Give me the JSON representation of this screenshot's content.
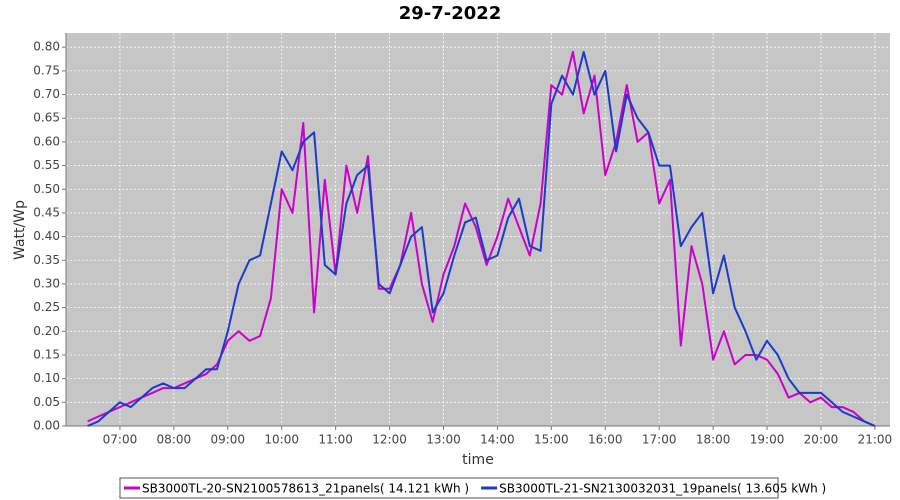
{
  "chart_data": {
    "type": "line",
    "title": "29-7-2022",
    "x_label": "time",
    "y_label": "Watt/Wp",
    "x": [
      6.4,
      6.6,
      6.8,
      7.0,
      7.2,
      7.4,
      7.6,
      7.8,
      8.0,
      8.2,
      8.4,
      8.6,
      8.8,
      9.0,
      9.2,
      9.4,
      9.6,
      9.8,
      10.0,
      10.2,
      10.4,
      10.6,
      10.8,
      11.0,
      11.2,
      11.4,
      11.6,
      11.8,
      12.0,
      12.2,
      12.4,
      12.6,
      12.8,
      13.0,
      13.2,
      13.4,
      13.6,
      13.8,
      14.0,
      14.2,
      14.4,
      14.6,
      14.8,
      15.0,
      15.2,
      15.4,
      15.6,
      15.8,
      16.0,
      16.2,
      16.4,
      16.6,
      16.8,
      17.0,
      17.2,
      17.4,
      17.6,
      17.8,
      18.0,
      18.2,
      18.4,
      18.6,
      18.8,
      19.0,
      19.2,
      19.4,
      19.6,
      19.8,
      20.0,
      20.2,
      20.4,
      20.6,
      20.8,
      21.0
    ],
    "series": [
      {
        "name": "SB3000TL-20-SN2100578613_21panels( 14.121 kWh )",
        "color": "#cc00cc",
        "values": [
          0.01,
          0.02,
          0.03,
          0.04,
          0.05,
          0.06,
          0.07,
          0.08,
          0.08,
          0.09,
          0.1,
          0.11,
          0.13,
          0.18,
          0.2,
          0.18,
          0.19,
          0.27,
          0.5,
          0.45,
          0.64,
          0.24,
          0.52,
          0.32,
          0.55,
          0.45,
          0.57,
          0.29,
          0.29,
          0.34,
          0.45,
          0.3,
          0.22,
          0.32,
          0.38,
          0.47,
          0.42,
          0.34,
          0.4,
          0.48,
          0.42,
          0.36,
          0.47,
          0.72,
          0.7,
          0.79,
          0.66,
          0.74,
          0.53,
          0.6,
          0.72,
          0.6,
          0.62,
          0.47,
          0.52,
          0.17,
          0.38,
          0.3,
          0.14,
          0.2,
          0.13,
          0.15,
          0.15,
          0.14,
          0.11,
          0.06,
          0.07,
          0.05,
          0.06,
          0.04,
          0.04,
          0.03,
          0.01,
          0.0
        ]
      },
      {
        "name": "SB3000TL-21-SN2130032031_19panels( 13.605 kWh )",
        "color": "#1a3cc8",
        "values": [
          0.0,
          0.01,
          0.03,
          0.05,
          0.04,
          0.06,
          0.08,
          0.09,
          0.08,
          0.08,
          0.1,
          0.12,
          0.12,
          0.2,
          0.3,
          0.35,
          0.36,
          0.47,
          0.58,
          0.54,
          0.6,
          0.62,
          0.34,
          0.32,
          0.47,
          0.53,
          0.55,
          0.3,
          0.28,
          0.34,
          0.4,
          0.42,
          0.24,
          0.28,
          0.36,
          0.43,
          0.44,
          0.35,
          0.36,
          0.44,
          0.48,
          0.38,
          0.37,
          0.68,
          0.74,
          0.7,
          0.79,
          0.7,
          0.75,
          0.58,
          0.7,
          0.65,
          0.62,
          0.55,
          0.55,
          0.38,
          0.42,
          0.45,
          0.28,
          0.36,
          0.25,
          0.2,
          0.14,
          0.18,
          0.15,
          0.1,
          0.07,
          0.07,
          0.07,
          0.05,
          0.03,
          0.02,
          0.01,
          0.0
        ]
      }
    ],
    "xlim": [
      6.0,
      21.28
    ],
    "ylim": [
      0,
      0.83
    ],
    "xticks": [
      {
        "value": 7,
        "label": "07:00"
      },
      {
        "value": 8,
        "label": "08:00"
      },
      {
        "value": 9,
        "label": "09:00"
      },
      {
        "value": 10,
        "label": "10:00"
      },
      {
        "value": 11,
        "label": "11:00"
      },
      {
        "value": 12,
        "label": "12:00"
      },
      {
        "value": 13,
        "label": "13:00"
      },
      {
        "value": 14,
        "label": "14:00"
      },
      {
        "value": 15,
        "label": "15:00"
      },
      {
        "value": 16,
        "label": "16:00"
      },
      {
        "value": 17,
        "label": "17:00"
      },
      {
        "value": 18,
        "label": "18:00"
      },
      {
        "value": 19,
        "label": "19:00"
      },
      {
        "value": 20,
        "label": "20:00"
      },
      {
        "value": 21,
        "label": "21:00"
      }
    ],
    "yticks": [
      {
        "value": 0,
        "label": "0.00"
      },
      {
        "value": 0.05,
        "label": "0.05"
      },
      {
        "value": 0.1,
        "label": "0.10"
      },
      {
        "value": 0.15,
        "label": "0.15"
      },
      {
        "value": 0.2,
        "label": "0.20"
      },
      {
        "value": 0.25,
        "label": "0.25"
      },
      {
        "value": 0.3,
        "label": "0.30"
      },
      {
        "value": 0.35,
        "label": "0.35"
      },
      {
        "value": 0.4,
        "label": "0.40"
      },
      {
        "value": 0.45,
        "label": "0.45"
      },
      {
        "value": 0.5,
        "label": "0.50"
      },
      {
        "value": 0.55,
        "label": "0.55"
      },
      {
        "value": 0.6,
        "label": "0.60"
      },
      {
        "value": 0.65,
        "label": "0.65"
      },
      {
        "value": 0.7,
        "label": "0.70"
      },
      {
        "value": 0.75,
        "label": "0.75"
      },
      {
        "value": 0.8,
        "label": "0.80"
      }
    ],
    "grid": true
  }
}
